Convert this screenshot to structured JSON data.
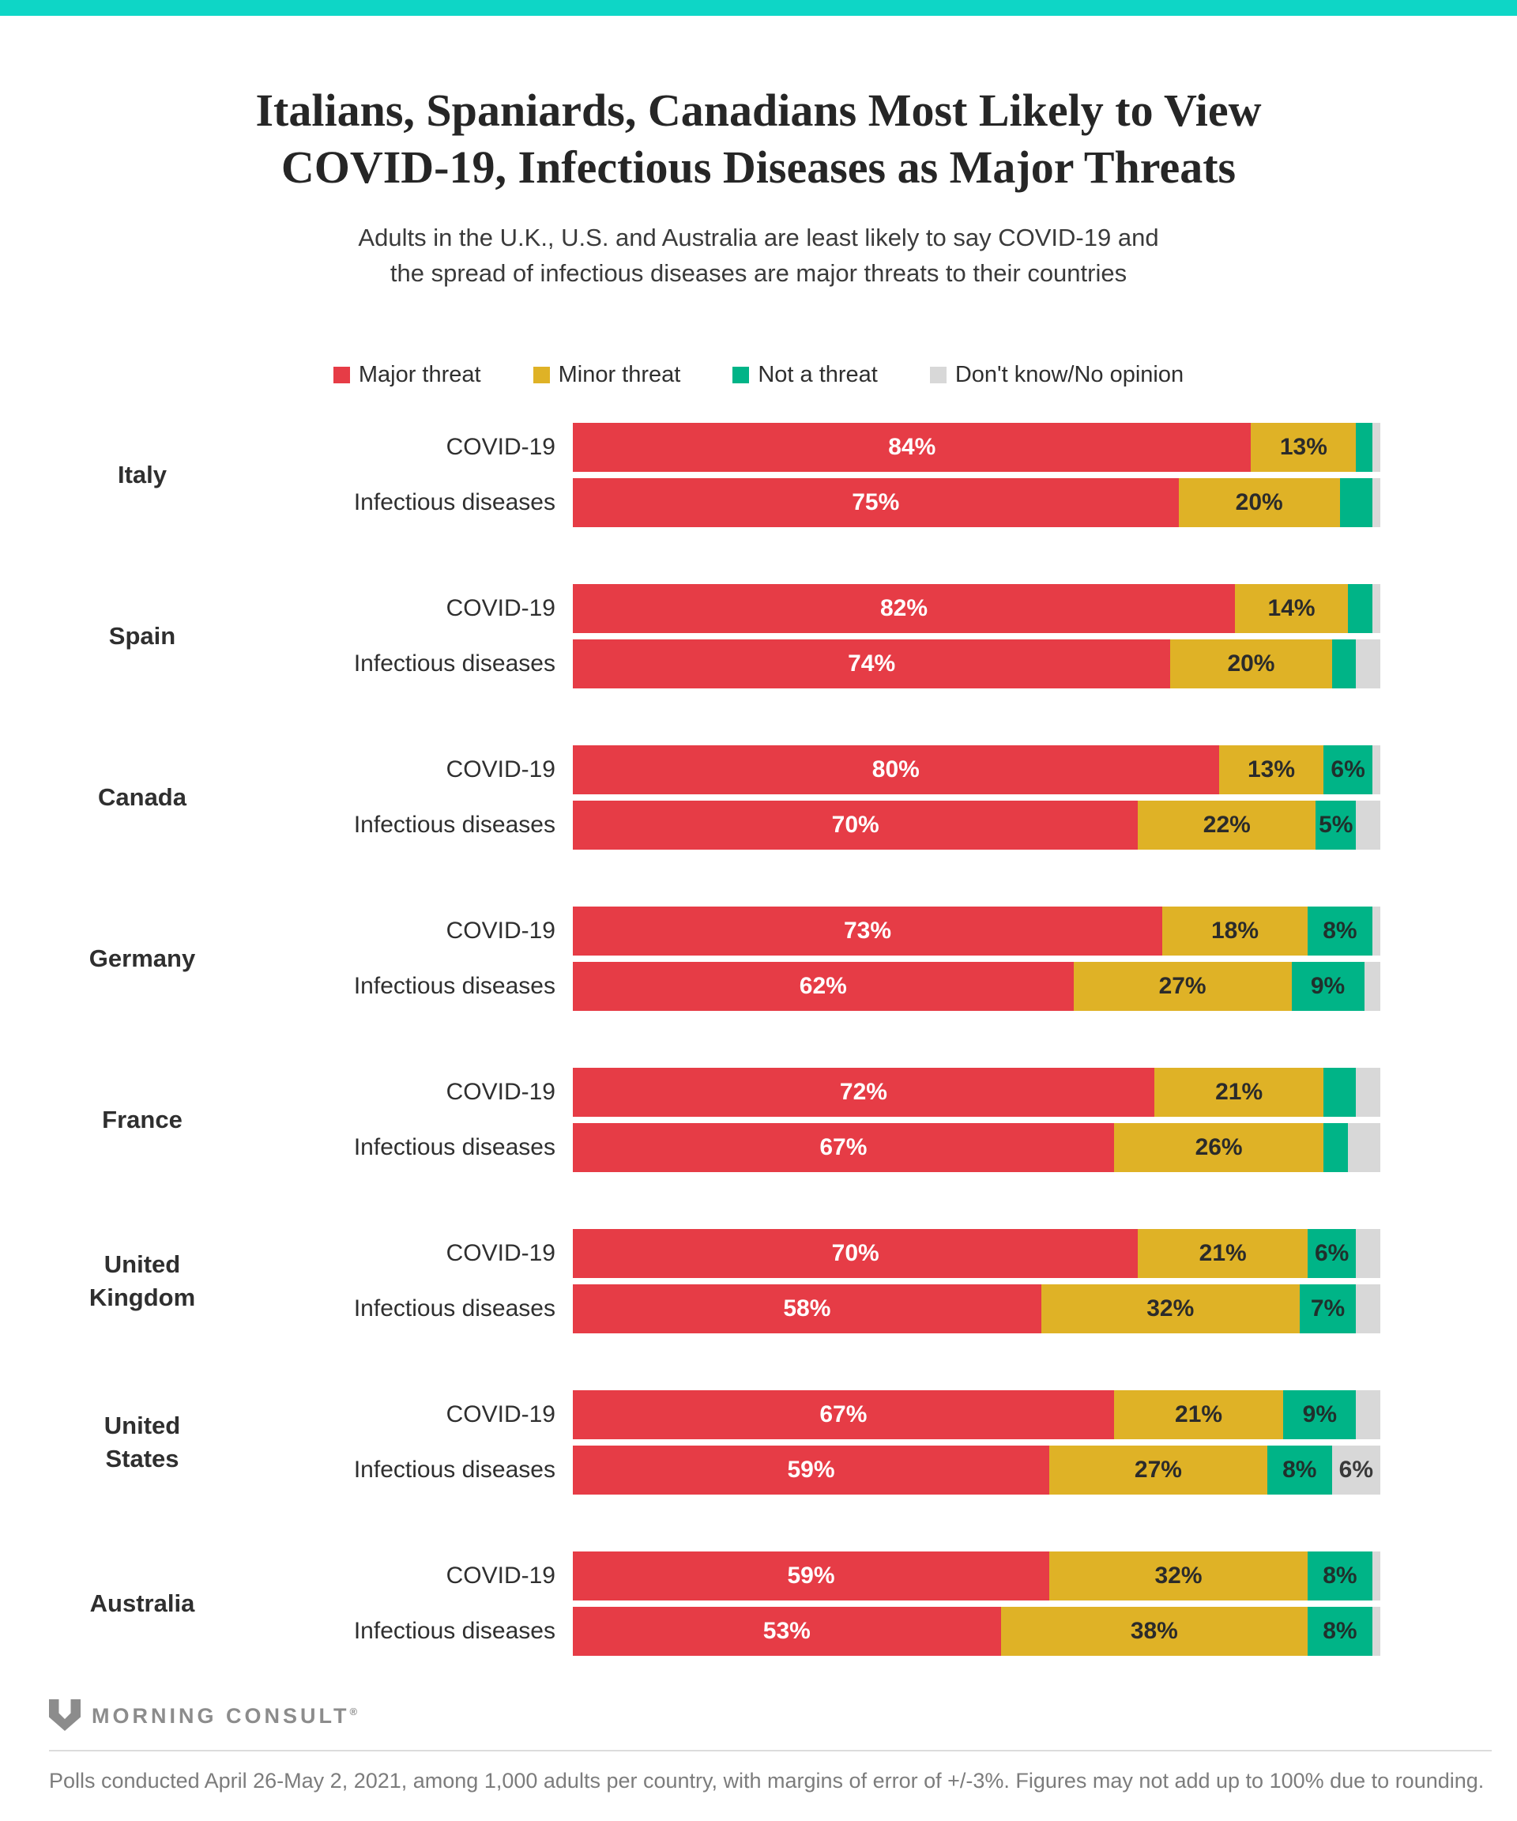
{
  "theme": {
    "accent_color": "#0ED6C6",
    "background_color": "#FFFFFF"
  },
  "header": {
    "title_line1": "Italians, Spaniards, Canadians Most Likely to View",
    "title_line2": "COVID-19, Infectious Diseases as Major Threats",
    "subtitle_line1": "Adults in the U.K., U.S. and Australia are least likely to say COVID-19 and",
    "subtitle_line2": "the spread of infectious diseases are major threats to their countries"
  },
  "chart_data": {
    "type": "bar",
    "stacked": true,
    "orientation": "horizontal",
    "unit": "percent",
    "xlim": [
      0,
      100
    ],
    "value_label_min": 5,
    "series": [
      {
        "key": "major",
        "label": "Major threat",
        "color": "#E63C46",
        "text_color": "#FFFFFF"
      },
      {
        "key": "minor",
        "label": "Minor threat",
        "color": "#DFB226",
        "text_color": "#2B2B2B"
      },
      {
        "key": "not_threat",
        "label": "Not a threat",
        "color": "#00B487",
        "text_color": "#20302C"
      },
      {
        "key": "dont_know",
        "label": "Don't know/No opinion",
        "color": "#D8D8D8",
        "text_color": "#3A3A3A"
      }
    ],
    "row_labels": [
      "COVID-19",
      "Infectious diseases"
    ],
    "countries": [
      {
        "name": "Italy",
        "name_lines": [
          "Italy"
        ],
        "covid": [
          84,
          13,
          2,
          1
        ],
        "infectious": [
          75,
          20,
          4,
          1
        ]
      },
      {
        "name": "Spain",
        "name_lines": [
          "Spain"
        ],
        "covid": [
          82,
          14,
          3,
          1
        ],
        "infectious": [
          74,
          20,
          3,
          3
        ]
      },
      {
        "name": "Canada",
        "name_lines": [
          "Canada"
        ],
        "covid": [
          80,
          13,
          6,
          1
        ],
        "infectious": [
          70,
          22,
          5,
          2
        ]
      },
      {
        "name": "Germany",
        "name_lines": [
          "Germany"
        ],
        "covid": [
          73,
          18,
          8,
          1
        ],
        "infectious": [
          62,
          27,
          9,
          2
        ]
      },
      {
        "name": "France",
        "name_lines": [
          "France"
        ],
        "covid": [
          72,
          21,
          4,
          3
        ],
        "infectious": [
          67,
          26,
          3,
          4
        ]
      },
      {
        "name": "United Kingdom",
        "name_lines": [
          "United",
          "Kingdom"
        ],
        "covid": [
          70,
          21,
          6,
          3
        ],
        "infectious": [
          58,
          32,
          7,
          3
        ]
      },
      {
        "name": "United States",
        "name_lines": [
          "United",
          "States"
        ],
        "covid": [
          67,
          21,
          9,
          3
        ],
        "infectious": [
          59,
          27,
          8,
          6
        ]
      },
      {
        "name": "Australia",
        "name_lines": [
          "Australia"
        ],
        "covid": [
          59,
          32,
          8,
          1
        ],
        "infectious": [
          53,
          38,
          8,
          1
        ]
      }
    ]
  },
  "footer": {
    "logo_text": "MORNING CONSULT",
    "registered_mark": "®",
    "note": "Polls conducted April 26-May 2, 2021, among 1,000 adults per country, with margins of error of +/-3%. Figures may not add up to 100% due to rounding."
  }
}
